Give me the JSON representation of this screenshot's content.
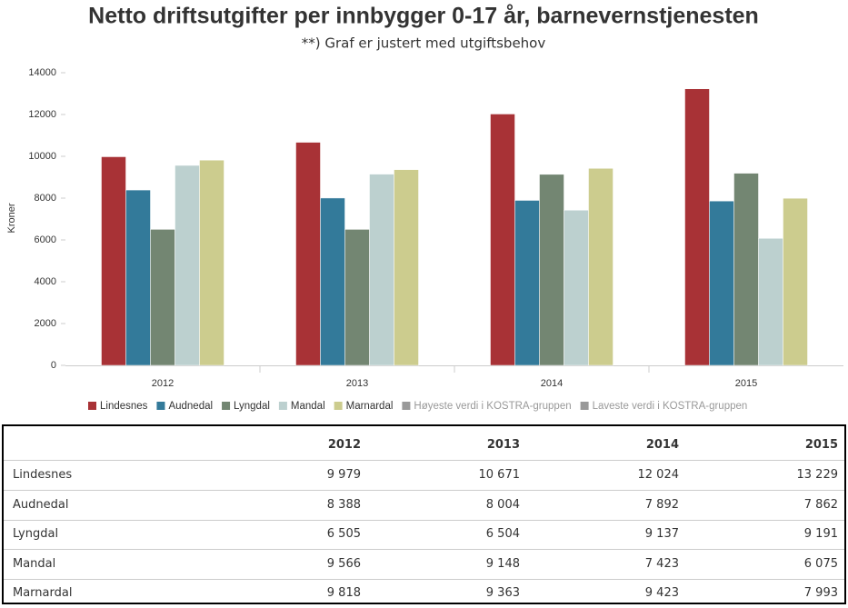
{
  "chart_data": {
    "type": "bar",
    "title": "Netto driftsutgifter per innbygger 0-17 år, barnevernstjenesten",
    "subtitle": "**) Graf er justert med utgiftsbehov",
    "y_label": "Kroner",
    "categories": [
      "2012",
      "2013",
      "2014",
      "2015"
    ],
    "ylim": [
      0,
      14000
    ],
    "yticks": [
      0,
      2000,
      4000,
      6000,
      8000,
      10000,
      12000,
      14000
    ],
    "grid": false,
    "legend": "bottom",
    "series": [
      {
        "name": "Lindesnes",
        "color": "#a83236",
        "values": [
          9979,
          10671,
          12024,
          13229
        ],
        "value_labels": [
          "9 979",
          "10 671",
          "12 024",
          "13 229"
        ]
      },
      {
        "name": "Audnedal",
        "color": "#337a9a",
        "values": [
          8388,
          8004,
          7892,
          7862
        ],
        "value_labels": [
          "8 388",
          "8 004",
          "7 892",
          "7 862"
        ]
      },
      {
        "name": "Lyngdal",
        "color": "#738672",
        "values": [
          6505,
          6504,
          9137,
          9191
        ],
        "value_labels": [
          "6 505",
          "6 504",
          "9 137",
          "9 191"
        ]
      },
      {
        "name": "Mandal",
        "color": "#bcd0cf",
        "values": [
          9566,
          9148,
          7423,
          6075
        ],
        "value_labels": [
          "9 566",
          "9 148",
          "7 423",
          "6 075"
        ]
      },
      {
        "name": "Marnardal",
        "color": "#cccc8e",
        "values": [
          9818,
          9363,
          9423,
          7993
        ],
        "value_labels": [
          "9 818",
          "9 363",
          "9 423",
          "7 993"
        ]
      },
      {
        "name": "Høyeste verdi i KOSTRA-gruppen",
        "color": "#999999",
        "visible": false,
        "values": [
          null,
          null,
          null,
          null
        ]
      },
      {
        "name": "Laveste verdi i KOSTRA-gruppen",
        "color": "#999999",
        "visible": false,
        "values": [
          null,
          null,
          null,
          null
        ]
      }
    ]
  }
}
